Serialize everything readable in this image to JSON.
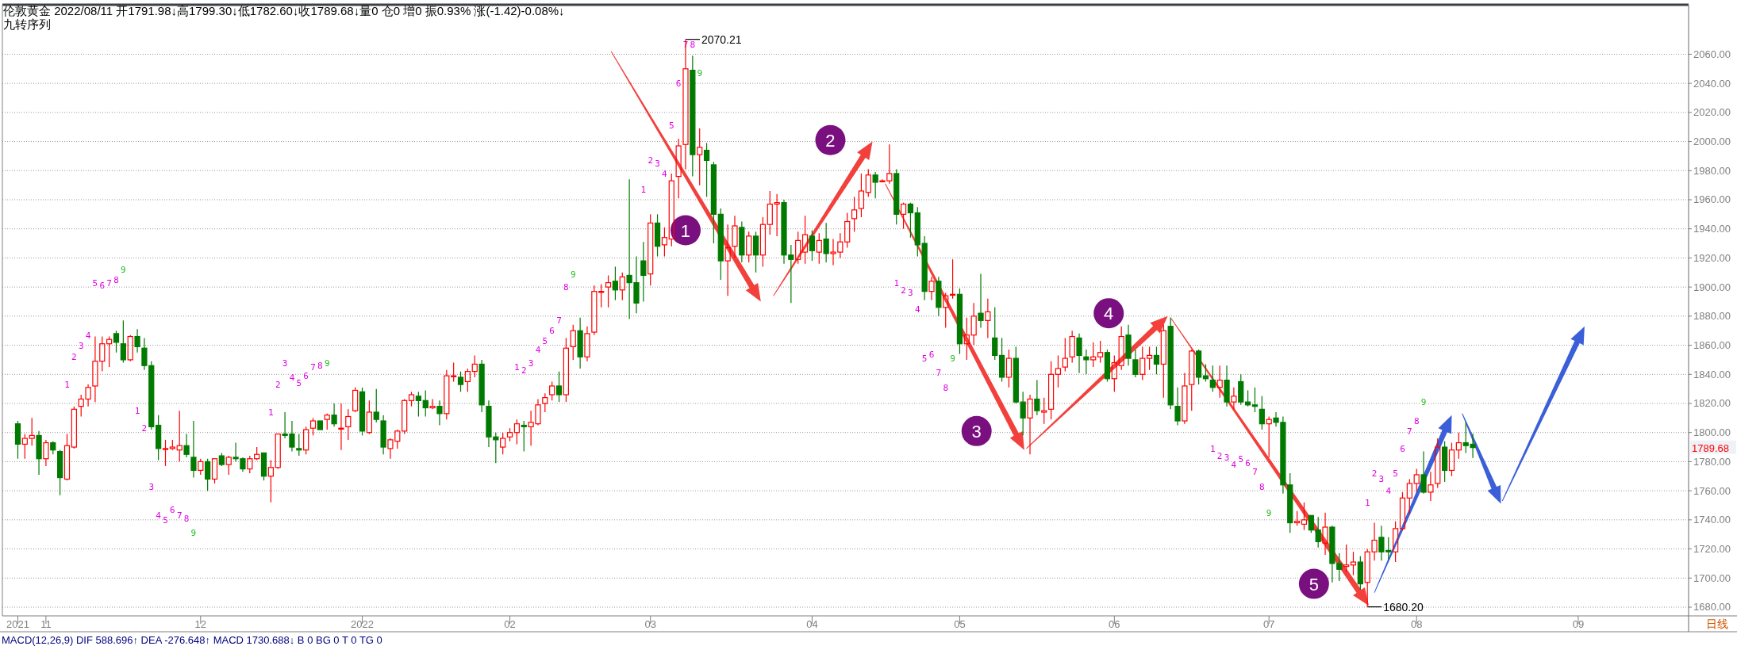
{
  "chart_data": {
    "type": "candlestick",
    "title": "伦敦黄金 2022/08/11 开1791.98↓高1799.30↓低1782.60↓收1789.68↓量0 仓0 增0 振0.93% 涨(-1.42)-0.08%↓",
    "subtitle": "九转序列",
    "categories": [
      "2021",
      null,
      null,
      null,
      "11",
      null,
      null,
      null,
      null,
      null,
      null,
      null,
      null,
      null,
      null,
      null,
      null,
      null,
      null,
      null,
      null,
      null,
      null,
      null,
      null,
      null,
      "12",
      null,
      null,
      null,
      null,
      null,
      null,
      null,
      null,
      null,
      null,
      null,
      null,
      null,
      null,
      null,
      null,
      null,
      null,
      null,
      null,
      null,
      null,
      "2022",
      null,
      null,
      null,
      null,
      null,
      null,
      null,
      null,
      null,
      null,
      null,
      null,
      null,
      null,
      null,
      null,
      null,
      null,
      null,
      null,
      "02",
      null,
      null,
      null,
      null,
      null,
      null,
      null,
      null,
      null,
      null,
      null,
      null,
      null,
      null,
      null,
      null,
      null,
      null,
      null,
      "03",
      null,
      null,
      null,
      null,
      null,
      null,
      null,
      null,
      null,
      null,
      null,
      null,
      null,
      null,
      null,
      null,
      null,
      null,
      null,
      null,
      null,
      null,
      "04",
      null,
      null,
      null,
      null,
      null,
      null,
      null,
      null,
      null,
      null,
      null,
      null,
      null,
      null,
      null,
      null,
      null,
      null,
      null,
      null,
      "05",
      null,
      null,
      null,
      null,
      null,
      null,
      null,
      null,
      null,
      null,
      null,
      null,
      null,
      null,
      null,
      null,
      null,
      null,
      null,
      null,
      null,
      "06",
      null,
      null,
      null,
      null,
      null,
      null,
      null,
      null,
      null,
      null,
      null,
      null,
      null,
      null,
      null,
      null,
      null,
      null,
      null,
      null,
      null,
      "07",
      null,
      null,
      null,
      null,
      null,
      null,
      null,
      null,
      null,
      null,
      null,
      null,
      null,
      null,
      null,
      null,
      null,
      null,
      null,
      null,
      "08",
      null,
      null,
      null,
      null,
      null,
      null,
      null,
      null,
      null,
      null,
      null,
      null,
      null,
      null,
      null,
      null,
      null,
      null,
      null,
      null,
      null,
      null,
      "09",
      null,
      null,
      null,
      null,
      null,
      null,
      null,
      null,
      null,
      null,
      null,
      null,
      null,
      null,
      null
    ],
    "ohlc": [
      [
        1806,
        1808,
        1782,
        1792
      ],
      [
        1792,
        1799,
        1782,
        1796
      ],
      [
        1796,
        1810,
        1791,
        1798
      ],
      [
        1798,
        1801,
        1771,
        1782
      ],
      [
        1782,
        1795,
        1777,
        1793
      ],
      [
        1793,
        1794,
        1785,
        1788
      ],
      [
        1787,
        1788,
        1757,
        1769
      ],
      [
        1768,
        1799,
        1767,
        1791
      ],
      [
        1790,
        1818,
        1789,
        1816
      ],
      [
        1818,
        1826,
        1811,
        1823
      ],
      [
        1823,
        1833,
        1818,
        1831
      ],
      [
        1832,
        1866,
        1821,
        1849
      ],
      [
        1849,
        1866,
        1842,
        1861
      ],
      [
        1861,
        1866,
        1845,
        1864
      ],
      [
        1868,
        1870,
        1855,
        1862
      ],
      [
        1861,
        1877,
        1848,
        1850
      ],
      [
        1850,
        1867,
        1849,
        1866
      ],
      [
        1866,
        1871,
        1855,
        1859
      ],
      [
        1858,
        1865,
        1843,
        1846
      ],
      [
        1846,
        1849,
        1802,
        1804
      ],
      [
        1805,
        1812,
        1781,
        1789
      ],
      [
        1789,
        1795,
        1777,
        1789
      ],
      [
        1789,
        1795,
        1788,
        1790
      ],
      [
        1788,
        1815,
        1780,
        1791
      ],
      [
        1791,
        1799,
        1783,
        1785
      ],
      [
        1783,
        1808,
        1769,
        1774
      ],
      [
        1774,
        1782,
        1771,
        1780
      ],
      [
        1780,
        1782,
        1760,
        1768
      ],
      [
        1768,
        1782,
        1765,
        1782
      ],
      [
        1784,
        1786,
        1777,
        1778
      ],
      [
        1778,
        1784,
        1771,
        1783
      ],
      [
        1783,
        1793,
        1780,
        1782
      ],
      [
        1782,
        1783,
        1773,
        1775
      ],
      [
        1775,
        1784,
        1772,
        1782
      ],
      [
        1782,
        1790,
        1781,
        1785
      ],
      [
        1786,
        1786,
        1767,
        1770
      ],
      [
        1770,
        1781,
        1752,
        1776
      ],
      [
        1776,
        1799,
        1775,
        1799
      ],
      [
        1799,
        1814,
        1796,
        1798
      ],
      [
        1799,
        1808,
        1787,
        1790
      ],
      [
        1789,
        1799,
        1784,
        1788
      ],
      [
        1788,
        1804,
        1785,
        1802
      ],
      [
        1803,
        1810,
        1798,
        1808
      ],
      [
        1808,
        1808,
        1802,
        1802
      ],
      [
        1809,
        1813,
        1802,
        1812
      ],
      [
        1812,
        1820,
        1804,
        1806
      ],
      [
        1803,
        1820,
        1788,
        1803
      ],
      [
        1804,
        1816,
        1795,
        1811
      ],
      [
        1815,
        1831,
        1814,
        1829
      ],
      [
        1828,
        1831,
        1798,
        1801
      ],
      [
        1800,
        1822,
        1799,
        1814
      ],
      [
        1814,
        1830,
        1807,
        1809
      ],
      [
        1808,
        1812,
        1785,
        1790
      ],
      [
        1789,
        1796,
        1782,
        1795
      ],
      [
        1794,
        1802,
        1789,
        1801
      ],
      [
        1801,
        1823,
        1799,
        1822
      ],
      [
        1822,
        1828,
        1818,
        1826
      ],
      [
        1825,
        1828,
        1811,
        1822
      ],
      [
        1822,
        1829,
        1811,
        1817
      ],
      [
        1817,
        1823,
        1816,
        1818
      ],
      [
        1818,
        1822,
        1805,
        1813
      ],
      [
        1813,
        1843,
        1809,
        1839
      ],
      [
        1839,
        1848,
        1835,
        1839
      ],
      [
        1838,
        1842,
        1828,
        1833
      ],
      [
        1835,
        1844,
        1828,
        1842
      ],
      [
        1842,
        1853,
        1838,
        1847
      ],
      [
        1847,
        1850,
        1814,
        1819
      ],
      [
        1818,
        1822,
        1790,
        1797
      ],
      [
        1797,
        1800,
        1779,
        1795
      ],
      [
        1790,
        1800,
        1785,
        1796
      ],
      [
        1797,
        1803,
        1794,
        1800
      ],
      [
        1800,
        1809,
        1792,
        1806
      ],
      [
        1805,
        1808,
        1787,
        1804
      ],
      [
        1804,
        1815,
        1791,
        1807
      ],
      [
        1806,
        1823,
        1805,
        1819
      ],
      [
        1820,
        1827,
        1814,
        1824
      ],
      [
        1826,
        1835,
        1822,
        1832
      ],
      [
        1832,
        1842,
        1821,
        1826
      ],
      [
        1826,
        1865,
        1821,
        1858
      ],
      [
        1859,
        1874,
        1850,
        1870
      ],
      [
        1870,
        1879,
        1844,
        1852
      ],
      [
        1852,
        1873,
        1849,
        1868
      ],
      [
        1869,
        1901,
        1867,
        1897
      ],
      [
        1897,
        1902,
        1886,
        1897
      ],
      [
        1900,
        1908,
        1886,
        1903
      ],
      [
        1904,
        1914,
        1891,
        1898
      ],
      [
        1898,
        1910,
        1891,
        1907
      ],
      [
        1908,
        1974,
        1878,
        1903
      ],
      [
        1903,
        1921,
        1882,
        1889
      ],
      [
        1918,
        1931,
        1890,
        1908
      ],
      [
        1909,
        1950,
        1901,
        1944
      ],
      [
        1944,
        1950,
        1921,
        1928
      ],
      [
        1929,
        1941,
        1921,
        1934
      ],
      [
        1933,
        1978,
        1928,
        1973
      ],
      [
        1976,
        2002,
        1961,
        1997
      ],
      [
        1998,
        2070.21,
        1981,
        2050
      ],
      [
        2049,
        2059,
        1976,
        1991
      ],
      [
        1991,
        2009,
        1970,
        1996
      ],
      [
        1994,
        1999,
        1962,
        1987
      ],
      [
        1984,
        1986,
        1930,
        1950
      ],
      [
        1950,
        1954,
        1905,
        1918
      ],
      [
        1918,
        1943,
        1894,
        1927
      ],
      [
        1928,
        1949,
        1920,
        1942
      ],
      [
        1941,
        1945,
        1917,
        1922
      ],
      [
        1922,
        1938,
        1917,
        1935
      ],
      [
        1935,
        1938,
        1910,
        1922
      ],
      [
        1922,
        1948,
        1914,
        1943
      ],
      [
        1943,
        1966,
        1936,
        1957
      ],
      [
        1957,
        1964,
        1935,
        1958
      ],
      [
        1958,
        1960,
        1916,
        1922
      ],
      [
        1922,
        1929,
        1889,
        1919
      ],
      [
        1919,
        1938,
        1916,
        1932
      ],
      [
        1924,
        1949,
        1916,
        1936
      ],
      [
        1935,
        1939,
        1918,
        1925
      ],
      [
        1924,
        1937,
        1916,
        1932
      ],
      [
        1933,
        1944,
        1917,
        1923
      ],
      [
        1923,
        1933,
        1915,
        1924
      ],
      [
        1924,
        1937,
        1920,
        1931
      ],
      [
        1931,
        1951,
        1927,
        1945
      ],
      [
        1947,
        1962,
        1938,
        1953
      ],
      [
        1954,
        1978,
        1948,
        1966
      ],
      [
        1965,
        1981,
        1962,
        1977
      ],
      [
        1977,
        1979,
        1961,
        1972
      ],
      [
        1973,
        1974,
        1972,
        1973
      ],
      [
        1973,
        1998,
        1971,
        1978
      ],
      [
        1978,
        1981,
        1943,
        1950
      ],
      [
        1950,
        1958,
        1940,
        1957
      ],
      [
        1957,
        1958,
        1934,
        1951
      ],
      [
        1951,
        1955,
        1921,
        1929
      ],
      [
        1930,
        1935,
        1891,
        1897
      ],
      [
        1897,
        1907,
        1891,
        1904
      ],
      [
        1904,
        1907,
        1880,
        1886
      ],
      [
        1886,
        1896,
        1872,
        1894
      ],
      [
        1895,
        1919,
        1892,
        1895
      ],
      [
        1895,
        1899,
        1854,
        1861
      ],
      [
        1861,
        1879,
        1850,
        1867
      ],
      [
        1867,
        1889,
        1860,
        1880
      ],
      [
        1882,
        1909,
        1872,
        1877
      ],
      [
        1877,
        1892,
        1865,
        1883
      ],
      [
        1865,
        1886,
        1850,
        1853
      ],
      [
        1853,
        1865,
        1835,
        1838
      ],
      [
        1838,
        1857,
        1831,
        1851
      ],
      [
        1851,
        1859,
        1820,
        1821
      ],
      [
        1821,
        1828,
        1798,
        1810
      ],
      [
        1810,
        1826,
        1785,
        1823
      ],
      [
        1823,
        1836,
        1812,
        1815
      ],
      [
        1814,
        1824,
        1806,
        1815
      ],
      [
        1816,
        1849,
        1809,
        1840
      ],
      [
        1840,
        1853,
        1831,
        1844
      ],
      [
        1845,
        1865,
        1842,
        1851
      ],
      [
        1852,
        1870,
        1848,
        1866
      ],
      [
        1865,
        1868,
        1841,
        1853
      ],
      [
        1852,
        1857,
        1840,
        1850
      ],
      [
        1850,
        1862,
        1845,
        1852
      ],
      [
        1852,
        1863,
        1848,
        1855
      ],
      [
        1855,
        1857,
        1835,
        1837
      ],
      [
        1837,
        1853,
        1828,
        1848
      ],
      [
        1846,
        1873,
        1843,
        1866
      ],
      [
        1867,
        1874,
        1846,
        1851
      ],
      [
        1850,
        1857,
        1838,
        1840
      ],
      [
        1840,
        1859,
        1836,
        1851
      ],
      [
        1851,
        1859,
        1843,
        1853
      ],
      [
        1853,
        1859,
        1840,
        1847
      ],
      [
        1847,
        1874,
        1824,
        1870
      ],
      [
        1873,
        1879,
        1816,
        1819
      ],
      [
        1818,
        1831,
        1805,
        1808
      ],
      [
        1808,
        1841,
        1806,
        1832
      ],
      [
        1833,
        1857,
        1815,
        1856
      ],
      [
        1856,
        1857,
        1833,
        1838
      ],
      [
        1839,
        1847,
        1835,
        1837
      ],
      [
        1836,
        1846,
        1828,
        1831
      ],
      [
        1831,
        1846,
        1824,
        1836
      ],
      [
        1836,
        1846,
        1818,
        1821
      ],
      [
        1821,
        1831,
        1816,
        1825
      ],
      [
        1835,
        1840,
        1819,
        1821
      ],
      [
        1821,
        1829,
        1818,
        1819
      ],
      [
        1819,
        1831,
        1814,
        1818
      ],
      [
        1816,
        1825,
        1802,
        1806
      ],
      [
        1806,
        1811,
        1783,
        1809
      ],
      [
        1810,
        1814,
        1804,
        1807
      ],
      [
        1807,
        1811,
        1758,
        1764
      ],
      [
        1764,
        1772,
        1731,
        1738
      ],
      [
        1738,
        1746,
        1736,
        1739
      ],
      [
        1737,
        1752,
        1733,
        1740
      ],
      [
        1743,
        1743,
        1731,
        1733
      ],
      [
        1733,
        1742,
        1721,
        1725
      ],
      [
        1724,
        1745,
        1716,
        1735
      ],
      [
        1735,
        1736,
        1697,
        1710
      ],
      [
        1710,
        1717,
        1698,
        1706
      ],
      [
        1708,
        1723,
        1704,
        1709
      ],
      [
        1709,
        1718,
        1702,
        1711
      ],
      [
        1711,
        1715,
        1692,
        1696
      ],
      [
        1697,
        1720,
        1680.2,
        1718
      ],
      [
        1718,
        1738,
        1712,
        1726
      ],
      [
        1728,
        1736,
        1712,
        1718
      ],
      [
        1719,
        1728,
        1713,
        1718
      ],
      [
        1718,
        1739,
        1711,
        1734
      ],
      [
        1734,
        1759,
        1733,
        1755
      ],
      [
        1755,
        1768,
        1744,
        1765
      ],
      [
        1765,
        1775,
        1759,
        1771
      ],
      [
        1771,
        1787,
        1758,
        1759
      ],
      [
        1759,
        1773,
        1753,
        1764
      ],
      [
        1765,
        1796,
        1762,
        1790
      ],
      [
        1790,
        1794,
        1766,
        1774
      ],
      [
        1774,
        1793,
        1770,
        1788
      ],
      [
        1788,
        1800,
        1782,
        1793
      ],
      [
        1793,
        1807,
        1786,
        1791
      ],
      [
        1791.98,
        1799.3,
        1782.6,
        1789.68
      ],
      null,
      null,
      null,
      null,
      null,
      null,
      null,
      null,
      null,
      null,
      null,
      null,
      null,
      null,
      null,
      null,
      null,
      null,
      null,
      null,
      null,
      null,
      null,
      null,
      null,
      null,
      null,
      null,
      null,
      null
    ],
    "ylim": [
      1674,
      2094
    ],
    "yticks": [
      {
        "value": 1680,
        "label": "1680.00"
      },
      {
        "value": 1700,
        "label": "1700.00"
      },
      {
        "value": 1720,
        "label": "1720.00"
      },
      {
        "value": 1740,
        "label": "1740.00"
      },
      {
        "value": 1760,
        "label": "1760.00"
      },
      {
        "value": 1780,
        "label": "1780.00"
      },
      {
        "value": 1800,
        "label": "1800.00"
      },
      {
        "value": 1820,
        "label": "1820.00"
      },
      {
        "value": 1840,
        "label": "1840.00"
      },
      {
        "value": 1860,
        "label": "1860.00"
      },
      {
        "value": 1880,
        "label": "1880.00"
      },
      {
        "value": 1900,
        "label": "1900.00"
      },
      {
        "value": 1920,
        "label": "1920.00"
      },
      {
        "value": 1940,
        "label": "1940.00"
      },
      {
        "value": 1960,
        "label": "1960.00"
      },
      {
        "value": 1980,
        "label": "1980.00"
      },
      {
        "value": 2000,
        "label": "2000.00"
      },
      {
        "value": 2020,
        "label": "2020.00"
      },
      {
        "value": 2040,
        "label": "2040.00"
      },
      {
        "value": 2060,
        "label": "2060.00"
      }
    ],
    "grid": "y",
    "annotations": [
      "MACD(12,26,9) DIF 588.696↑ DEA -276.648↑ MACD 1730.688↓ B 0 BG 0 T 0 TG 0",
      "日线",
      "1789.68",
      "2070.21",
      "1680.20",
      "1",
      "2",
      "3",
      "4",
      "5",
      "1",
      "2",
      "3",
      "4",
      "5",
      "6",
      "7",
      "8",
      "9",
      "1",
      "2",
      "3",
      "4",
      "5",
      "6",
      "7",
      "8",
      "9",
      "1",
      "2",
      "3",
      "4",
      "5",
      "6",
      "7",
      "8",
      "9",
      "1",
      "2",
      "3",
      "4",
      "5",
      "6",
      "7",
      "8",
      "9",
      "1",
      "2",
      "3",
      "4",
      "5",
      "6",
      "7",
      "8",
      "9",
      "1",
      "2",
      "3",
      "4",
      "5",
      "6",
      "7",
      "8",
      "9",
      "1",
      "2",
      "3",
      "4",
      "5",
      "6",
      "7",
      "8",
      "9",
      "1",
      "2",
      "3",
      "4",
      "5",
      "6",
      "7",
      "8",
      "9"
    ]
  }
}
